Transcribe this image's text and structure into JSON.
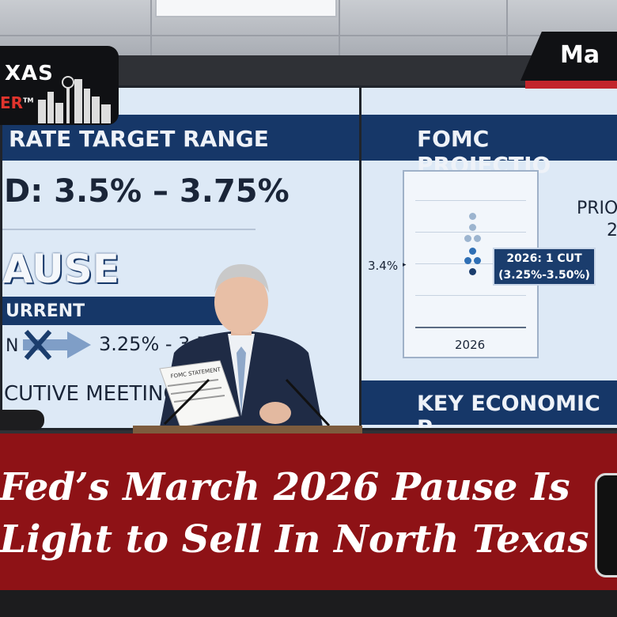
{
  "brand": {
    "logo_word": "XAS",
    "logo_sub": "ER",
    "logo_tm": "TM"
  },
  "date_tag": "Ma",
  "left_screen": {
    "header": "RATE TARGET RANGE",
    "range": "D: 3.5% – 3.75%",
    "status": "AUSE",
    "subheader": "URRENT",
    "from_label": "N",
    "new_range": "3.25% - 3.50%",
    "footer": "CUTIVE MEETING"
  },
  "right_screen": {
    "header": "FOMC PROJECTIO",
    "prior_label": "PRIO",
    "prior_value": "2",
    "axis_value": "3.4%",
    "axis_marker": "▸",
    "callout_line1": "2026: 1 CUT",
    "callout_line2": "(3.25%-3.50%)",
    "year_label": "2026",
    "footer": "KEY ECONOMIC P"
  },
  "speaker": {
    "document_label": "FOMC STATEMENT"
  },
  "headline": {
    "line1": "Fed’s March 2026 Pause Is",
    "line2": "Light to Sell In North Texas"
  },
  "colors": {
    "banner": "#8e1216",
    "screen_band": "#163768",
    "brand_red": "#e0342d"
  }
}
